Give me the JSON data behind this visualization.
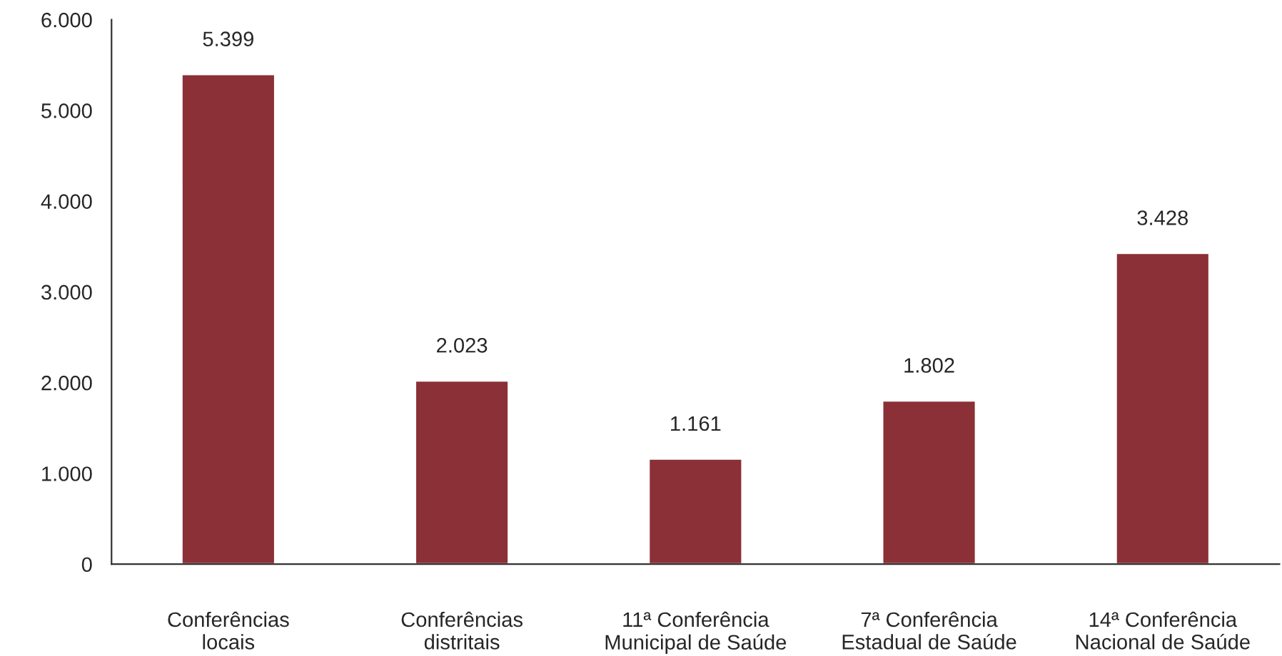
{
  "chart_data": {
    "type": "bar",
    "categories": [
      "Conferências\nlocais",
      "Conferências\ndistritais",
      "11ª Conferência\nMunicipal de Saúde",
      "7ª Conferência\nEstadual de Saúde",
      "14ª Conferência\nNacional de Saúde"
    ],
    "values": [
      5399,
      2023,
      1161,
      1802,
      3428
    ],
    "value_labels": [
      "5.399",
      "2.023",
      "1.161",
      "1.802",
      "3.428"
    ],
    "color": "#8b3036",
    "ylim": [
      0,
      6000
    ],
    "yticks": [
      {
        "value": 0,
        "label": "0"
      },
      {
        "value": 1000,
        "label": "1.000"
      },
      {
        "value": 2000,
        "label": "2.000"
      },
      {
        "value": 3000,
        "label": "3.000"
      },
      {
        "value": 4000,
        "label": "4.000"
      },
      {
        "value": 5000,
        "label": "5.000"
      },
      {
        "value": 6000,
        "label": "6.000"
      }
    ],
    "grid": false,
    "legend": false
  }
}
